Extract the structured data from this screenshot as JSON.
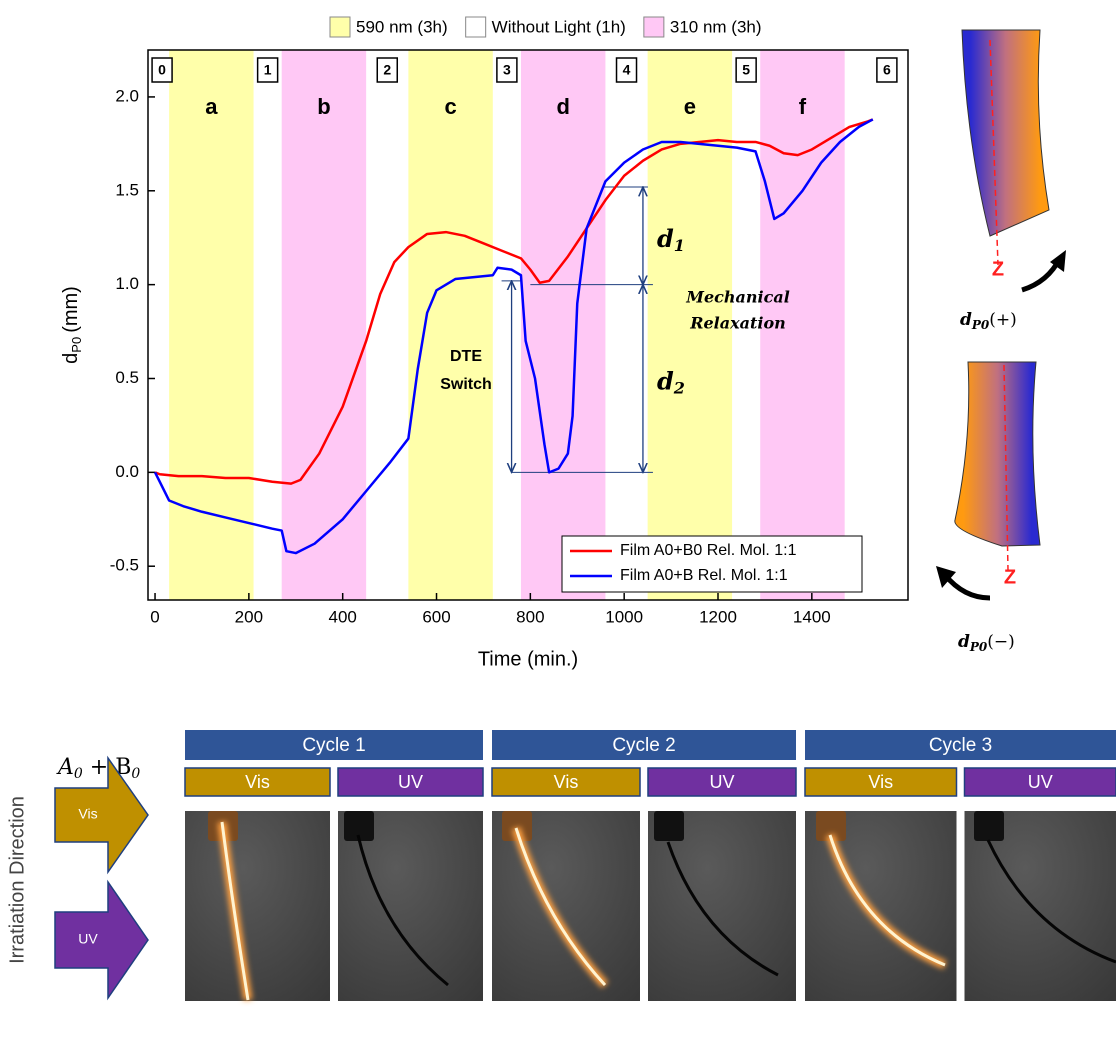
{
  "chart_data": {
    "type": "line",
    "x_label": "Time (min.)",
    "y_label": {
      "main": "d",
      "sub": "P0",
      "unit": "(mm)"
    },
    "xlim": [
      -15,
      1605
    ],
    "ylim": [
      -0.68,
      2.25
    ],
    "xticks": [
      0,
      200,
      400,
      600,
      800,
      1000,
      1200,
      1400
    ],
    "yticks": [
      -0.5,
      {
        "value": 0,
        "label": "0.0"
      },
      0.5,
      {
        "value": 1,
        "label": "1.0"
      },
      1.5,
      {
        "value": 2,
        "label": "2.0"
      }
    ],
    "band_legend": [
      {
        "label": "590 nm (3h)",
        "color": "#ffffaa"
      },
      {
        "label": "Without Light (1h)",
        "color": "#ffffff"
      },
      {
        "label": "310 nm (3h)",
        "color": "#ffc8f5"
      }
    ],
    "bands": [
      {
        "label": "a",
        "x0": 30,
        "x1": 210,
        "color": "#ffffaa"
      },
      {
        "label": "b",
        "x0": 270,
        "x1": 450,
        "color": "#ffc8f5"
      },
      {
        "label": "c",
        "x0": 540,
        "x1": 720,
        "color": "#ffffaa"
      },
      {
        "label": "d",
        "x0": 780,
        "x1": 960,
        "color": "#ffc8f5"
      },
      {
        "label": "e",
        "x0": 1050,
        "x1": 1230,
        "color": "#ffffaa"
      },
      {
        "label": "f",
        "x0": 1290,
        "x1": 1470,
        "color": "#ffc8f5"
      }
    ],
    "phases": [
      {
        "label": "0",
        "x": 15
      },
      {
        "label": "1",
        "x": 240
      },
      {
        "label": "2",
        "x": 495
      },
      {
        "label": "3",
        "x": 750
      },
      {
        "label": "4",
        "x": 1005
      },
      {
        "label": "5",
        "x": 1260
      },
      {
        "label": "6",
        "x": 1560
      }
    ],
    "series": [
      {
        "name": "Film A0+B0 Rel. Mol. 1:1",
        "color": "#ff0000",
        "x": [
          0,
          10,
          50,
          100,
          150,
          200,
          250,
          290,
          310,
          350,
          400,
          450,
          480,
          510,
          540,
          580,
          620,
          660,
          700,
          740,
          780,
          800,
          820,
          840,
          880,
          920,
          960,
          1000,
          1040,
          1080,
          1120,
          1160,
          1200,
          1240,
          1280,
          1310,
          1340,
          1370,
          1400,
          1440,
          1480,
          1520,
          1530
        ],
        "values": [
          0,
          -0.01,
          -0.02,
          -0.02,
          -0.03,
          -0.03,
          -0.05,
          -0.06,
          -0.04,
          0.1,
          0.35,
          0.7,
          0.95,
          1.12,
          1.2,
          1.27,
          1.28,
          1.26,
          1.22,
          1.18,
          1.14,
          1.08,
          1.01,
          1.02,
          1.15,
          1.3,
          1.45,
          1.58,
          1.66,
          1.72,
          1.75,
          1.76,
          1.77,
          1.76,
          1.76,
          1.74,
          1.7,
          1.69,
          1.72,
          1.78,
          1.84,
          1.87,
          1.88
        ]
      },
      {
        "name": "Film A0+B Rel. Mol. 1:1",
        "color": "#0000ff",
        "x": [
          0,
          10,
          30,
          60,
          100,
          150,
          200,
          250,
          270,
          280,
          300,
          340,
          400,
          450,
          500,
          540,
          560,
          580,
          600,
          640,
          680,
          720,
          730,
          760,
          780,
          790,
          810,
          830,
          840,
          860,
          880,
          890,
          900,
          920,
          960,
          1000,
          1040,
          1080,
          1120,
          1160,
          1200,
          1240,
          1280,
          1300,
          1320,
          1340,
          1380,
          1420,
          1460,
          1500,
          1530
        ],
        "values": [
          0,
          -0.05,
          -0.15,
          -0.18,
          -0.21,
          -0.24,
          -0.27,
          -0.3,
          -0.31,
          -0.42,
          -0.43,
          -0.38,
          -0.25,
          -0.1,
          0.05,
          0.18,
          0.55,
          0.85,
          0.97,
          1.03,
          1.04,
          1.05,
          1.09,
          1.08,
          1.05,
          0.7,
          0.5,
          0.15,
          0,
          0.02,
          0.1,
          0.3,
          0.9,
          1.3,
          1.55,
          1.65,
          1.72,
          1.76,
          1.76,
          1.75,
          1.74,
          1.73,
          1.71,
          1.55,
          1.35,
          1.38,
          1.5,
          1.65,
          1.76,
          1.84,
          1.88
        ]
      }
    ],
    "legend": "lower right",
    "dte": {
      "lines": [
        "DTE",
        "Switch"
      ],
      "x": 760,
      "y0": 0,
      "y1": 1.02
    },
    "relaxation": [
      "Mechanical",
      "Relaxation"
    ],
    "d1": {
      "main": "d",
      "sub": "1",
      "x": 1040,
      "y0": 1.0,
      "y1": 1.52
    },
    "d2": {
      "main": "d",
      "sub": "2",
      "x": 1040,
      "y0": 0,
      "y1": 1.0
    }
  },
  "side": {
    "axis": "Z",
    "plus": {
      "main": "d",
      "sub": "P0",
      "sign": "(+)"
    },
    "minus": {
      "main": "d",
      "sub": "P0",
      "sign": "(−)"
    }
  },
  "panel": {
    "sample": [
      "A",
      "0",
      " + B",
      "0"
    ],
    "direction": "Irratiation Direction",
    "arrows": [
      "Vis",
      "UV"
    ],
    "cycles": [
      {
        "name": "Cycle 1",
        "steps": [
          "Vis",
          "UV"
        ]
      },
      {
        "name": "Cycle 2",
        "steps": [
          "Vis",
          "UV"
        ]
      },
      {
        "name": "Cycle 3",
        "steps": [
          "Vis",
          "UV"
        ]
      }
    ]
  }
}
